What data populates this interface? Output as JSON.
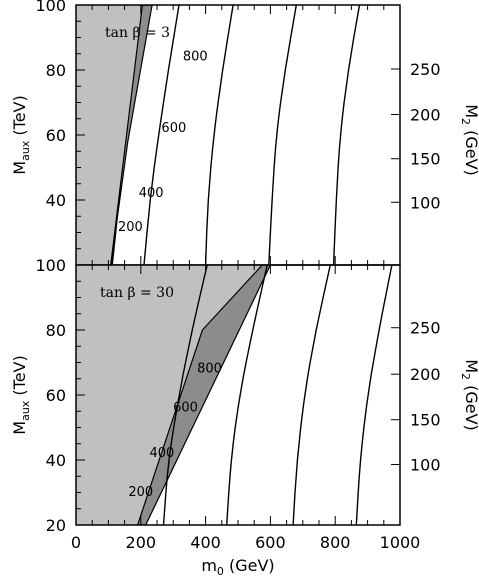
{
  "chart_data": {
    "type": "line",
    "xlabel_main": "m",
    "xlabel_sub": "0",
    "xlabel_unit": " (GeV)",
    "xlim": [
      0,
      1000
    ],
    "x_ticks": [
      0,
      200,
      400,
      600,
      800,
      1000
    ],
    "panels": [
      {
        "label": "tan β = 3",
        "ylabel_main": "M",
        "ylabel_sub": "aux",
        "ylabel_unit": " (TeV)",
        "ylim": [
          20,
          100
        ],
        "y_ticks": [
          20,
          40,
          60,
          80,
          100
        ],
        "right_label_main": "M",
        "right_label_sub": "2",
        "right_label_unit": " (GeV)",
        "right_ticks": [
          {
            "label": "100",
            "y": 39.3
          },
          {
            "label": "150",
            "y": 52.7
          },
          {
            "label": "200",
            "y": 66.3
          },
          {
            "label": "250",
            "y": 80.3
          }
        ],
        "excluded_region": [
          [
            0,
            20
          ],
          [
            107,
            20
          ],
          [
            205,
            100
          ],
          [
            0,
            100
          ]
        ],
        "dark_band": [
          [
            107,
            20
          ],
          [
            205,
            100
          ],
          [
            235,
            100
          ],
          [
            160,
            58
          ],
          [
            128,
            35
          ],
          [
            112,
            20
          ]
        ],
        "black_sliver": [
          [
            107,
            20
          ],
          [
            112,
            20
          ],
          [
            128,
            35
          ],
          [
            125,
            35
          ]
        ],
        "contours": [
          {
            "label": "200",
            "label_at": [
              168,
              30.5
            ],
            "points": [
              [
                210,
                20
              ],
              [
                228,
                40
              ],
              [
                255,
                60
              ],
              [
                285,
                80
              ],
              [
                318,
                100
              ]
            ]
          },
          {
            "label": "400",
            "label_at": [
              232,
              41
            ],
            "points": [
              [
                400,
                20
              ],
              [
                407,
                40
              ],
              [
                425,
                60
              ],
              [
                452,
                80
              ],
              [
                485,
                100
              ]
            ]
          },
          {
            "label": "600",
            "label_at": [
              302,
              61
            ],
            "points": [
              [
                595,
                20
              ],
              [
                605,
                40
              ],
              [
                618,
                60
              ],
              [
                645,
                80
              ],
              [
                680,
                100
              ]
            ]
          },
          {
            "label": "800",
            "label_at": [
              368,
              83
            ],
            "points": [
              [
                795,
                20
              ],
              [
                803,
                40
              ],
              [
                815,
                60
              ],
              [
                840,
                80
              ],
              [
                875,
                100
              ]
            ]
          }
        ]
      },
      {
        "label": "tan β = 30",
        "ylabel_main": "M",
        "ylabel_sub": "aux",
        "ylabel_unit": " (TeV)",
        "ylim": [
          20,
          100
        ],
        "y_ticks": [
          20,
          40,
          60,
          80,
          100
        ],
        "right_label_main": "M",
        "right_label_sub": "2",
        "right_label_unit": " (GeV)",
        "right_ticks": [
          {
            "label": "100",
            "y": 38.6
          },
          {
            "label": "150",
            "y": 52.4
          },
          {
            "label": "200",
            "y": 66.4
          },
          {
            "label": "250",
            "y": 80.7
          }
        ],
        "excluded_region": [
          [
            0,
            20
          ],
          [
            190,
            20
          ],
          [
            390,
            80
          ],
          [
            575,
            100
          ],
          [
            0,
            100
          ]
        ],
        "dark_band": [
          [
            190,
            20
          ],
          [
            390,
            80
          ],
          [
            575,
            100
          ],
          [
            600,
            100
          ],
          [
            215,
            20
          ]
        ],
        "black_sliver": [],
        "contours": [
          {
            "label": "200",
            "label_at": [
              200,
              29
            ],
            "points": [
              [
                270,
                20
              ],
              [
                285,
                40
              ],
              [
                318,
                60
              ],
              [
                358,
                80
              ],
              [
                405,
                100
              ]
            ]
          },
          {
            "label": "400",
            "label_at": [
              265,
              41
            ],
            "points": [
              [
                465,
                20
              ],
              [
                478,
                40
              ],
              [
                505,
                60
              ],
              [
                545,
                80
              ],
              [
                590,
                100
              ]
            ]
          },
          {
            "label": "600",
            "label_at": [
              338,
              55
            ],
            "points": [
              [
                670,
                20
              ],
              [
                682,
                40
              ],
              [
                705,
                60
              ],
              [
                740,
                80
              ],
              [
                785,
                100
              ]
            ]
          },
          {
            "label": "800",
            "label_at": [
              412,
              67
            ],
            "points": [
              [
                865,
                20
              ],
              [
                877,
                40
              ],
              [
                900,
                60
              ],
              [
                935,
                80
              ],
              [
                975,
                100
              ]
            ]
          }
        ]
      }
    ]
  }
}
